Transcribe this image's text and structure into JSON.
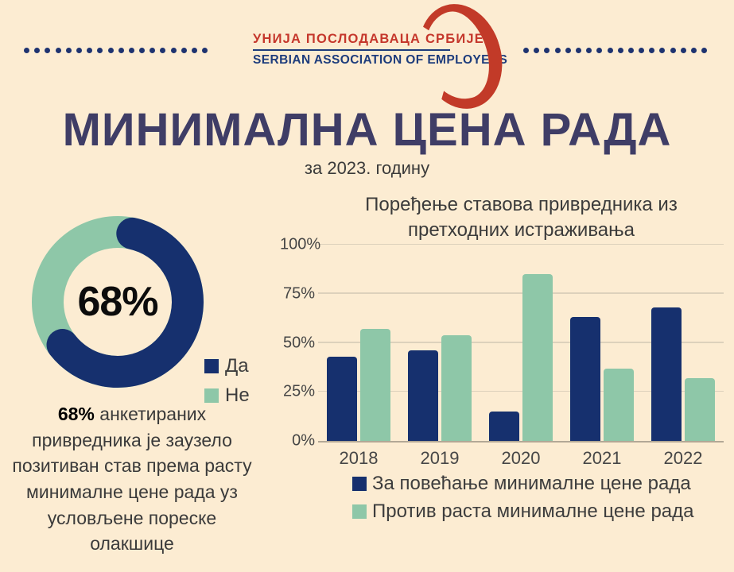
{
  "header": {
    "org_name_sr": "УНИЈА ПОСЛОДАВАЦА СРБИЈЕ",
    "org_name_en": "SERBIAN ASSOCIATION OF EMPLOYERS",
    "dots_per_side": 18
  },
  "title": "МИНИМАЛНА ЦЕНА РАДА",
  "subtitle": "за 2023. годину",
  "donut_caption": {
    "lead": "68%",
    "rest": " анкетираних привредника је заузело позитиван став према расту минималне цене рада уз условљене пореске олакшице"
  },
  "chart_data": [
    {
      "type": "pie",
      "variant": "donut",
      "center_label": "68%",
      "slices": [
        {
          "label": "Да",
          "value": 68,
          "color": "#16306e"
        },
        {
          "label": "Не",
          "value": 32,
          "color": "#8ec7a8"
        }
      ],
      "legend_position": "right-bottom"
    },
    {
      "type": "bar",
      "title": "Поређење ставова привредника из претходних истраживања",
      "categories": [
        "2018",
        "2019",
        "2020",
        "2021",
        "2022"
      ],
      "series": [
        {
          "name": "За повећање минималне цене рада",
          "color": "#16306e",
          "values": [
            43,
            46,
            15,
            63,
            68
          ]
        },
        {
          "name": "Против раста минималне цене рада",
          "color": "#8ec7a8",
          "values": [
            57,
            54,
            85,
            37,
            32
          ]
        }
      ],
      "yticks": [
        0,
        25,
        50,
        75,
        100
      ],
      "ytick_labels": [
        "0%",
        "25%",
        "50%",
        "75%",
        "100%"
      ],
      "ylim": [
        0,
        100
      ],
      "grid": true,
      "legend_position": "bottom"
    }
  ],
  "colors": {
    "background": "#fcecd2",
    "accent_navy": "#16306e",
    "accent_green": "#8ec7a8",
    "title_navy": "#3f3d66",
    "logo_red": "#c5372c",
    "dot_navy": "#1e3370",
    "text_dark": "#3a3a3a"
  }
}
